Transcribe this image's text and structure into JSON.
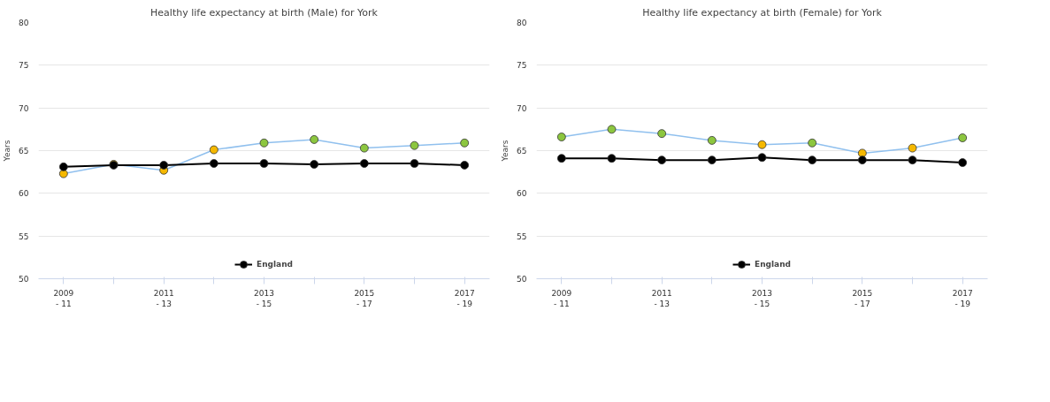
{
  "chart_data": [
    {
      "type": "line",
      "title": "Healthy life expectancy at birth (Male) for York",
      "ylabel": "Years",
      "categories": [
        "2009\n- 11",
        null,
        "2011\n- 13",
        null,
        "2013\n- 15",
        null,
        "2015\n- 17",
        null,
        "2017\n- 19"
      ],
      "series": [
        {
          "color": "#90c0ee",
          "colors": [
            "#f5b800",
            "#f5b800",
            "#f5b800",
            "#f5b800",
            "#8cc63f",
            "#8cc63f",
            "#8cc63f",
            "#8cc63f",
            "#8cc63f"
          ],
          "values": [
            62.3,
            63.4,
            62.7,
            65.1,
            65.9,
            66.3,
            65.3,
            65.6,
            65.9
          ]
        },
        {
          "name": "England",
          "color": "#000000",
          "values": [
            63.1,
            63.3,
            63.3,
            63.5,
            63.5,
            63.4,
            63.5,
            63.5,
            63.3
          ]
        }
      ],
      "ylim": [
        50,
        80
      ],
      "yticks": [
        50,
        55,
        60,
        65,
        70,
        75,
        80
      ],
      "grid": "y",
      "legend": "bottom",
      "marker": "circle",
      "line_style": "solid"
    },
    {
      "type": "line",
      "title": "Healthy life expectancy at birth (Female) for York",
      "ylabel": "Years",
      "categories": [
        "2009\n- 11",
        null,
        "2011\n- 13",
        null,
        "2013\n- 15",
        null,
        "2015\n- 17",
        null,
        "2017\n- 19"
      ],
      "series": [
        {
          "color": "#90c0ee",
          "colors": [
            "#8cc63f",
            "#8cc63f",
            "#8cc63f",
            "#8cc63f",
            "#f5b800",
            "#8cc63f",
            "#f5b800",
            "#f5b800",
            "#8cc63f"
          ],
          "values": [
            66.6,
            67.5,
            67.0,
            66.2,
            65.7,
            65.9,
            64.7,
            65.3,
            66.5
          ]
        },
        {
          "name": "England",
          "color": "#000000",
          "values": [
            64.1,
            64.1,
            63.9,
            63.9,
            64.2,
            63.9,
            63.9,
            63.9,
            63.6
          ]
        }
      ],
      "ylim": [
        50,
        80
      ],
      "yticks": [
        50,
        55,
        60,
        65,
        70,
        75,
        80
      ],
      "grid": "y",
      "legend": "bottom",
      "marker": "circle",
      "line_style": "solid"
    }
  ]
}
